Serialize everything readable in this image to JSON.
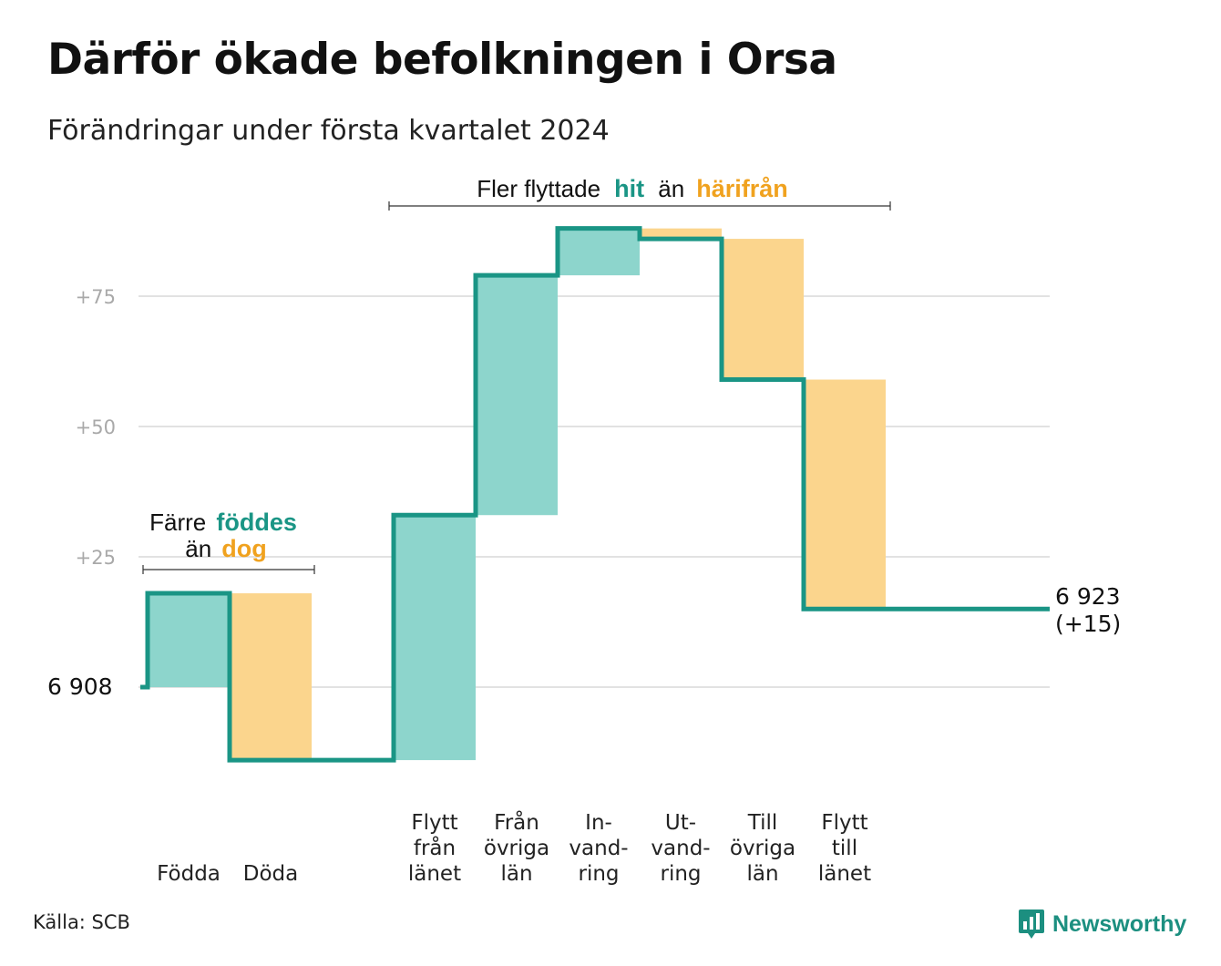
{
  "title": "Därför ökade befolkningen i Orsa",
  "subtitle": "Förändringar under första kvartalet 2024",
  "source": "Källa: SCB",
  "logo": {
    "text": "Newsworthy",
    "icon": "newsworthy-chart-bubble-icon"
  },
  "colors": {
    "increase_fill": "#8dd5cc",
    "decrease_fill": "#fbd58d",
    "step_line": "#1a9585",
    "hit_text": "#1a9585",
    "away_text": "#f0a21f"
  },
  "annotations": {
    "births_deaths": {
      "line1_prefix": "Färre",
      "line1_highlight": "föddes",
      "line2_prefix": "än",
      "line2_highlight": "dog"
    },
    "moves": {
      "prefix": "Fler flyttade",
      "hit": "hit",
      "middle": "än",
      "away": "härifrån"
    }
  },
  "chart_data": {
    "type": "waterfall",
    "start_label": "6  908",
    "end_label": [
      "6 923",
      "(+15)"
    ],
    "y_ticks": [
      {
        "value": 0,
        "label": ""
      },
      {
        "value": 25,
        "label": "+25"
      },
      {
        "value": 50,
        "label": "+50"
      },
      {
        "value": 75,
        "label": "+75"
      }
    ],
    "grid": true,
    "steps": [
      {
        "category": [
          "Födda"
        ],
        "change": 18,
        "kind": "increase"
      },
      {
        "category": [
          "Döda"
        ],
        "change": -32,
        "kind": "decrease"
      },
      {
        "category": [
          ""
        ],
        "change": 0,
        "kind": "gap"
      },
      {
        "category": [
          "Flytt",
          "från",
          "länet"
        ],
        "change": 47,
        "kind": "increase"
      },
      {
        "category": [
          "Från",
          "övriga",
          "län"
        ],
        "change": 46,
        "kind": "increase"
      },
      {
        "category": [
          "In-",
          "vand-",
          "ring"
        ],
        "change": 9,
        "kind": "increase"
      },
      {
        "category": [
          "Ut-",
          "vand-",
          "ring"
        ],
        "change": -2,
        "kind": "decrease"
      },
      {
        "category": [
          "Till",
          "övriga",
          "län"
        ],
        "change": -27,
        "kind": "decrease"
      },
      {
        "category": [
          "Flytt",
          "till",
          "länet"
        ],
        "change": -44,
        "kind": "decrease"
      }
    ]
  }
}
